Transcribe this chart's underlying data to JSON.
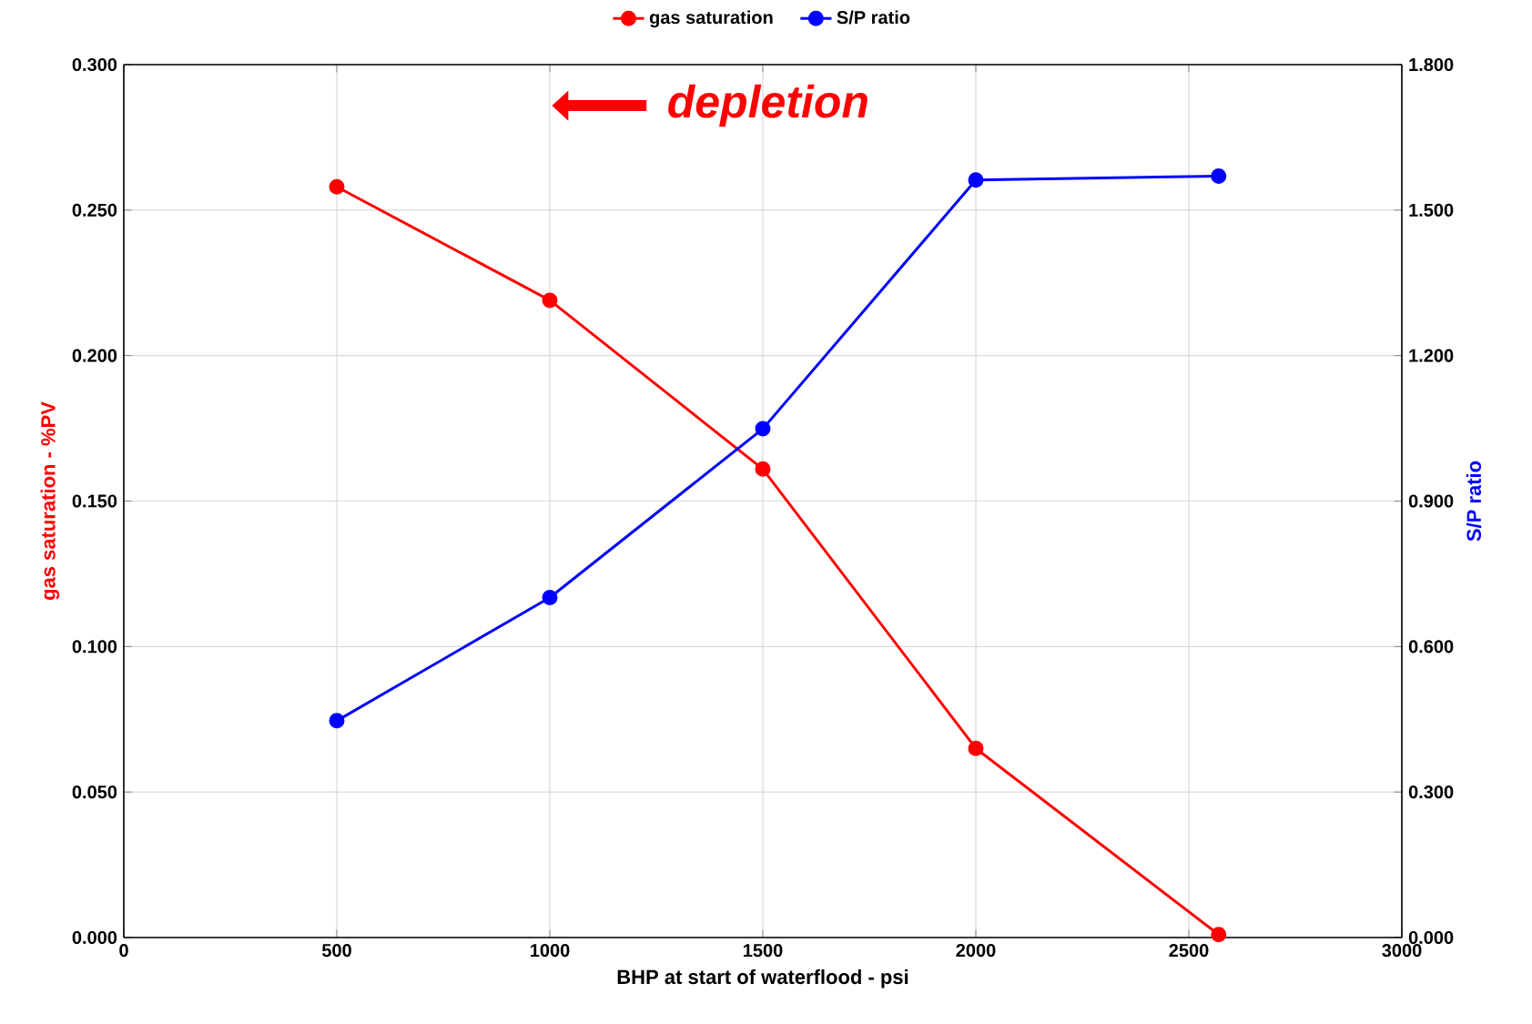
{
  "chart_data": {
    "type": "line",
    "xlabel": "BHP at start of waterflood - psi",
    "ylabel": "gas saturation - %PV",
    "y2label": "S/P ratio",
    "annotations": [
      "depletion"
    ],
    "xlim": [
      0,
      3000
    ],
    "xticks": [
      0,
      500,
      1000,
      1500,
      2000,
      2500,
      3000
    ],
    "ylim": [
      0,
      0.3
    ],
    "yticks": [
      {
        "value": 0,
        "label": "0.000"
      },
      {
        "value": 0.05,
        "label": "0.050"
      },
      {
        "value": 0.1,
        "label": "0.100"
      },
      {
        "value": 0.15,
        "label": "0.150"
      },
      {
        "value": 0.2,
        "label": "0.200"
      },
      {
        "value": 0.25,
        "label": "0.250"
      },
      {
        "value": 0.3,
        "label": "0.300"
      }
    ],
    "y2lim": [
      0,
      1.8
    ],
    "y2ticks": [
      {
        "value": 0,
        "label": "0.000"
      },
      {
        "value": 0.3,
        "label": "0.300"
      },
      {
        "value": 0.6,
        "label": "0.600"
      },
      {
        "value": 0.9,
        "label": "0.900"
      },
      {
        "value": 1.2,
        "label": "1.200"
      },
      {
        "value": 1.5,
        "label": "1.500"
      },
      {
        "value": 1.8,
        "label": "1.800"
      }
    ],
    "x": [
      500,
      1000,
      1500,
      2000,
      2570
    ],
    "series": [
      {
        "name": "gas saturation",
        "color": "#ff0000",
        "values": [
          0.258,
          0.219,
          0.161,
          0.065,
          0.001
        ]
      },
      {
        "name": "S/P ratio",
        "color": "#0000ff",
        "axis": "y2",
        "values": [
          0.447,
          0.701,
          1.049,
          1.562,
          1.57
        ]
      }
    ],
    "grid": true,
    "legend": "top",
    "marker": "circle",
    "line_style": "solid"
  }
}
